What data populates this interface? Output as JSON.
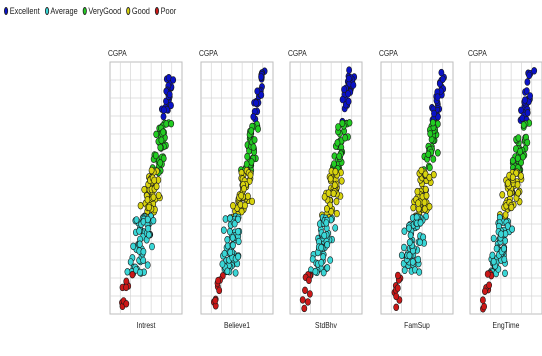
{
  "legend": [
    {
      "label": "Excellent",
      "color": "#0a12c8"
    },
    {
      "label": "Average",
      "color": "#39d6d6"
    },
    {
      "label": "VeryGood",
      "color": "#22cc22"
    },
    {
      "label": "Good",
      "color": "#d8d30e"
    },
    {
      "label": "Poor",
      "color": "#cc1818"
    }
  ],
  "chart_data": {
    "type": "scatter",
    "y_variable": "CGPA",
    "grid": true,
    "legend_placement": "top-left",
    "classes": [
      "Excellent",
      "Average",
      "VeryGood",
      "Good",
      "Poor"
    ],
    "panels": [
      {
        "ylabel": "CGPA",
        "xlabel": "Intrest"
      },
      {
        "ylabel": "CGPA",
        "xlabel": "Believe1"
      },
      {
        "ylabel": "CGPA",
        "xlabel": "StdBhv"
      },
      {
        "ylabel": "CGPA",
        "xlabel": "FamSup"
      },
      {
        "ylabel": "CGPA",
        "xlabel": "EngTime"
      }
    ]
  }
}
